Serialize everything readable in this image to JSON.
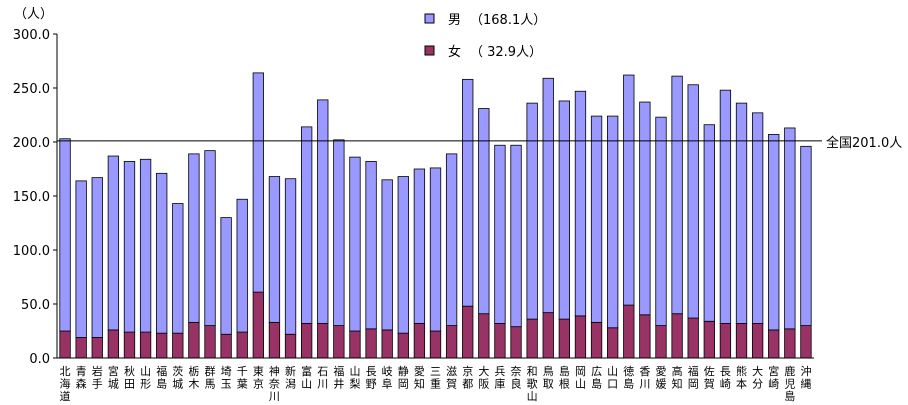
{
  "chart_data": {
    "type": "bar",
    "stacked": true,
    "y_unit_label": "（人）",
    "ylim": [
      0,
      300
    ],
    "yticks": [
      "0.0",
      "50.0",
      "100.0",
      "150.0",
      "200.0",
      "250.0",
      "300.0"
    ],
    "categories": [
      [
        "北",
        "海",
        "道"
      ],
      [
        "青",
        "森"
      ],
      [
        "岩",
        "手"
      ],
      [
        "宮",
        "城"
      ],
      [
        "秋",
        "田"
      ],
      [
        "山",
        "形"
      ],
      [
        "福",
        "島"
      ],
      [
        "茨",
        "城"
      ],
      [
        "栃",
        "木"
      ],
      [
        "群",
        "馬"
      ],
      [
        "埼",
        "玉"
      ],
      [
        "千",
        "葉"
      ],
      [
        "東",
        "京"
      ],
      [
        "神",
        "奈",
        "川"
      ],
      [
        "新",
        "潟"
      ],
      [
        "富",
        "山"
      ],
      [
        "石",
        "川"
      ],
      [
        "福",
        "井"
      ],
      [
        "山",
        "梨"
      ],
      [
        "長",
        "野"
      ],
      [
        "岐",
        "阜"
      ],
      [
        "静",
        "岡"
      ],
      [
        "愛",
        "知"
      ],
      [
        "三",
        "重"
      ],
      [
        "滋",
        "賀"
      ],
      [
        "京",
        "都"
      ],
      [
        "大",
        "阪"
      ],
      [
        "兵",
        "庫"
      ],
      [
        "奈",
        "良"
      ],
      [
        "和",
        "歌",
        "山"
      ],
      [
        "鳥",
        "取"
      ],
      [
        "島",
        "根"
      ],
      [
        "岡",
        "山"
      ],
      [
        "広",
        "島"
      ],
      [
        "山",
        "口"
      ],
      [
        "徳",
        "島"
      ],
      [
        "香",
        "川"
      ],
      [
        "愛",
        "媛"
      ],
      [
        "高",
        "知"
      ],
      [
        "福",
        "岡"
      ],
      [
        "佐",
        "賀"
      ],
      [
        "長",
        "崎"
      ],
      [
        "熊",
        "本"
      ],
      [
        "大",
        "分"
      ],
      [
        "宮",
        "崎"
      ],
      [
        "鹿",
        "児",
        "島"
      ],
      [
        "沖",
        "縄"
      ]
    ],
    "series": [
      {
        "name": "男",
        "legend_value": "（168.1人）",
        "color": "#9999ff",
        "values": [
          178,
          145,
          148,
          161,
          158,
          160,
          148,
          120,
          156,
          162,
          108,
          123,
          203,
          135,
          144,
          182,
          207,
          172,
          161,
          155,
          139,
          145,
          143,
          151,
          159,
          210,
          190,
          165,
          168,
          200,
          217,
          202,
          208,
          191,
          196,
          213,
          197,
          193,
          220,
          216,
          182,
          216,
          204,
          195,
          181,
          186,
          166
        ]
      },
      {
        "name": "女",
        "legend_value": "（ 32.9人）",
        "color": "#993366",
        "values": [
          25,
          19,
          19,
          26,
          24,
          24,
          23,
          23,
          33,
          30,
          22,
          24,
          61,
          33,
          22,
          32,
          32,
          30,
          25,
          27,
          26,
          23,
          32,
          25,
          30,
          48,
          41,
          32,
          29,
          36,
          42,
          36,
          39,
          33,
          28,
          49,
          40,
          30,
          41,
          37,
          34,
          32,
          32,
          32,
          26,
          27,
          30
        ]
      }
    ],
    "reference_line": {
      "value": 201.0,
      "label": "全国201.0人"
    },
    "legend_position": "top-center"
  }
}
